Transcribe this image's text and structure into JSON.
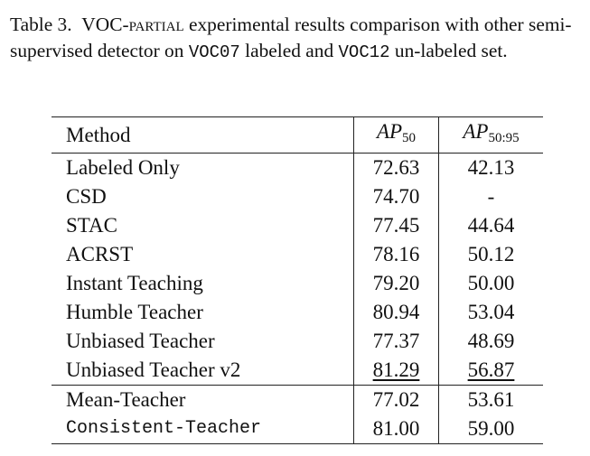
{
  "caption": {
    "label": "Table 3.",
    "dataset": "VOC-partial",
    "text1": " experimental results comparison with other semi-supervised detector on ",
    "labeled_set": "VOC07",
    "text2": " labeled and ",
    "unlabeled_set": "VOC12",
    "text3": " un-labeled set."
  },
  "table": {
    "headers": {
      "method": "Method",
      "ap50_base": "AP",
      "ap50_sub": "50",
      "ap5095_base": "AP",
      "ap5095_sub": "50:95"
    },
    "rows": [
      {
        "method": "Labeled Only",
        "ap50": "72.63",
        "ap5095": "42.13"
      },
      {
        "method": "CSD",
        "ap50": "74.70",
        "ap5095": "-"
      },
      {
        "method": "STAC",
        "ap50": "77.45",
        "ap5095": "44.64"
      },
      {
        "method": "ACRST",
        "ap50": "78.16",
        "ap5095": "50.12"
      },
      {
        "method": "Instant Teaching",
        "ap50": "79.20",
        "ap5095": "50.00"
      },
      {
        "method": "Humble Teacher",
        "ap50": "80.94",
        "ap5095": "53.04"
      },
      {
        "method": "Unbiased Teacher",
        "ap50": "77.37",
        "ap5095": "48.69"
      },
      {
        "method": "Unbiased Teacher v2",
        "ap50": "81.29",
        "ap5095": "56.87"
      },
      {
        "method": "Mean-Teacher",
        "ap50": "77.02",
        "ap5095": "53.61"
      },
      {
        "method": "Consistent-Teacher",
        "ap50": "81.00",
        "ap5095": "59.00"
      }
    ]
  }
}
